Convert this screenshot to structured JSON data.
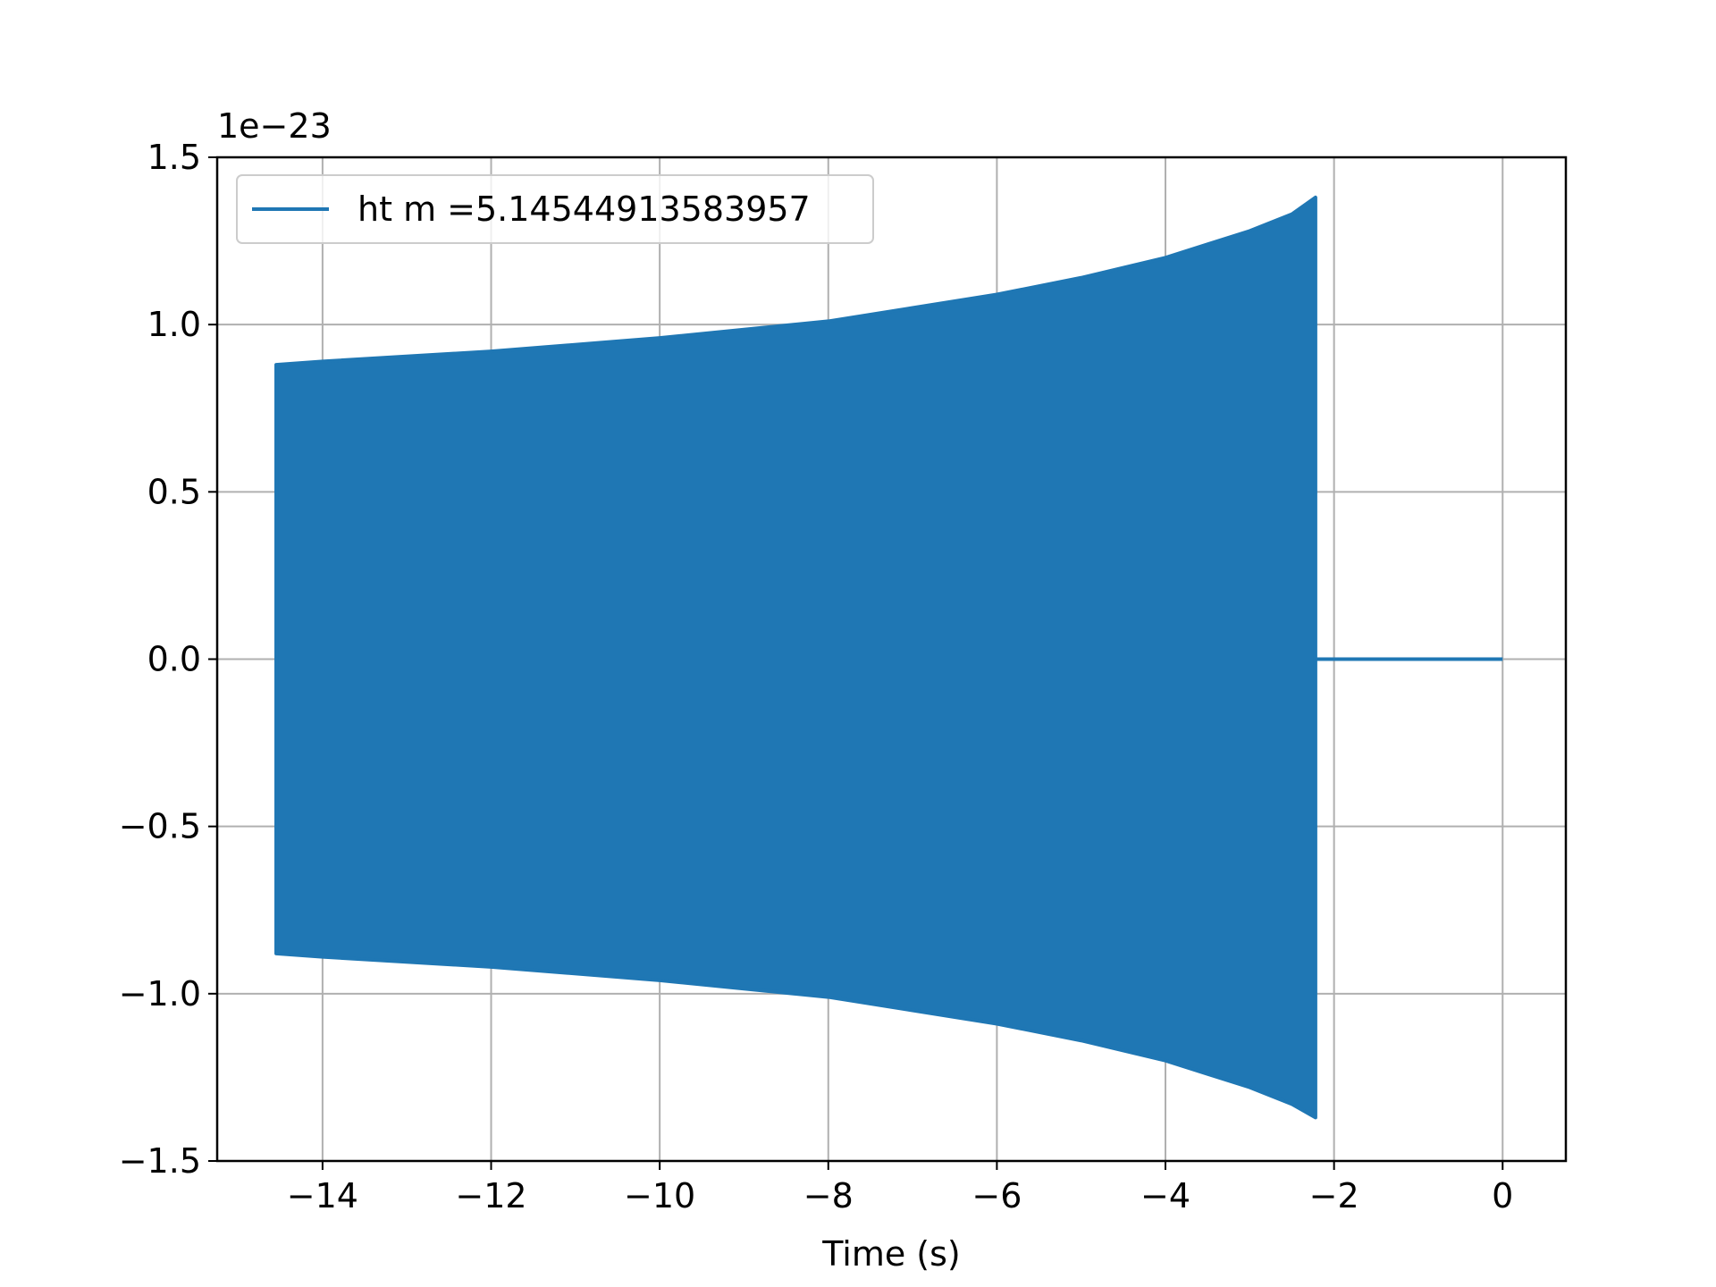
{
  "chart_data": {
    "type": "line",
    "title": "",
    "xlabel": "Time (s)",
    "ylabel": "",
    "y_offset_text": "1e−23",
    "y_scale_factor": 1e-23,
    "xlim": [
      -15.25,
      0.75
    ],
    "ylim": [
      -1.5,
      1.5
    ],
    "x_ticks": [
      -14,
      -12,
      -10,
      -8,
      -6,
      -4,
      -2,
      0
    ],
    "x_tick_labels": [
      "−14",
      "−12",
      "−10",
      "−8",
      "−6",
      "−4",
      "−2",
      "0"
    ],
    "y_ticks": [
      -1.5,
      -1.0,
      -0.5,
      0.0,
      0.5,
      1.0,
      1.5
    ],
    "y_tick_labels": [
      "−1.5",
      "−1.0",
      "−0.5",
      "0.0",
      "0.5",
      "1.0",
      "1.5"
    ],
    "grid": true,
    "legend": {
      "location": "upper left"
    },
    "color": "#1f77b4",
    "series": [
      {
        "name": "ht m =5.14544913583957",
        "upper_envelope": {
          "x": [
            -14.55,
            -14.0,
            -12.0,
            -10.0,
            -8.0,
            -6.0,
            -5.0,
            -4.0,
            -3.5,
            -3.0,
            -2.5,
            -2.22
          ],
          "y": [
            0.88,
            0.89,
            0.92,
            0.96,
            1.01,
            1.09,
            1.14,
            1.2,
            1.24,
            1.28,
            1.33,
            1.38
          ]
        },
        "lower_envelope": {
          "x": [
            -14.55,
            -14.0,
            -12.0,
            -10.0,
            -8.0,
            -6.0,
            -5.0,
            -4.0,
            -3.5,
            -3.0,
            -2.5,
            -2.22
          ],
          "y": [
            -0.88,
            -0.89,
            -0.92,
            -0.96,
            -1.01,
            -1.09,
            -1.14,
            -1.2,
            -1.24,
            -1.28,
            -1.33,
            -1.37
          ]
        },
        "flat_segment": {
          "x": [
            -2.22,
            0.0
          ],
          "y": [
            0.0,
            0.0
          ]
        }
      }
    ]
  }
}
